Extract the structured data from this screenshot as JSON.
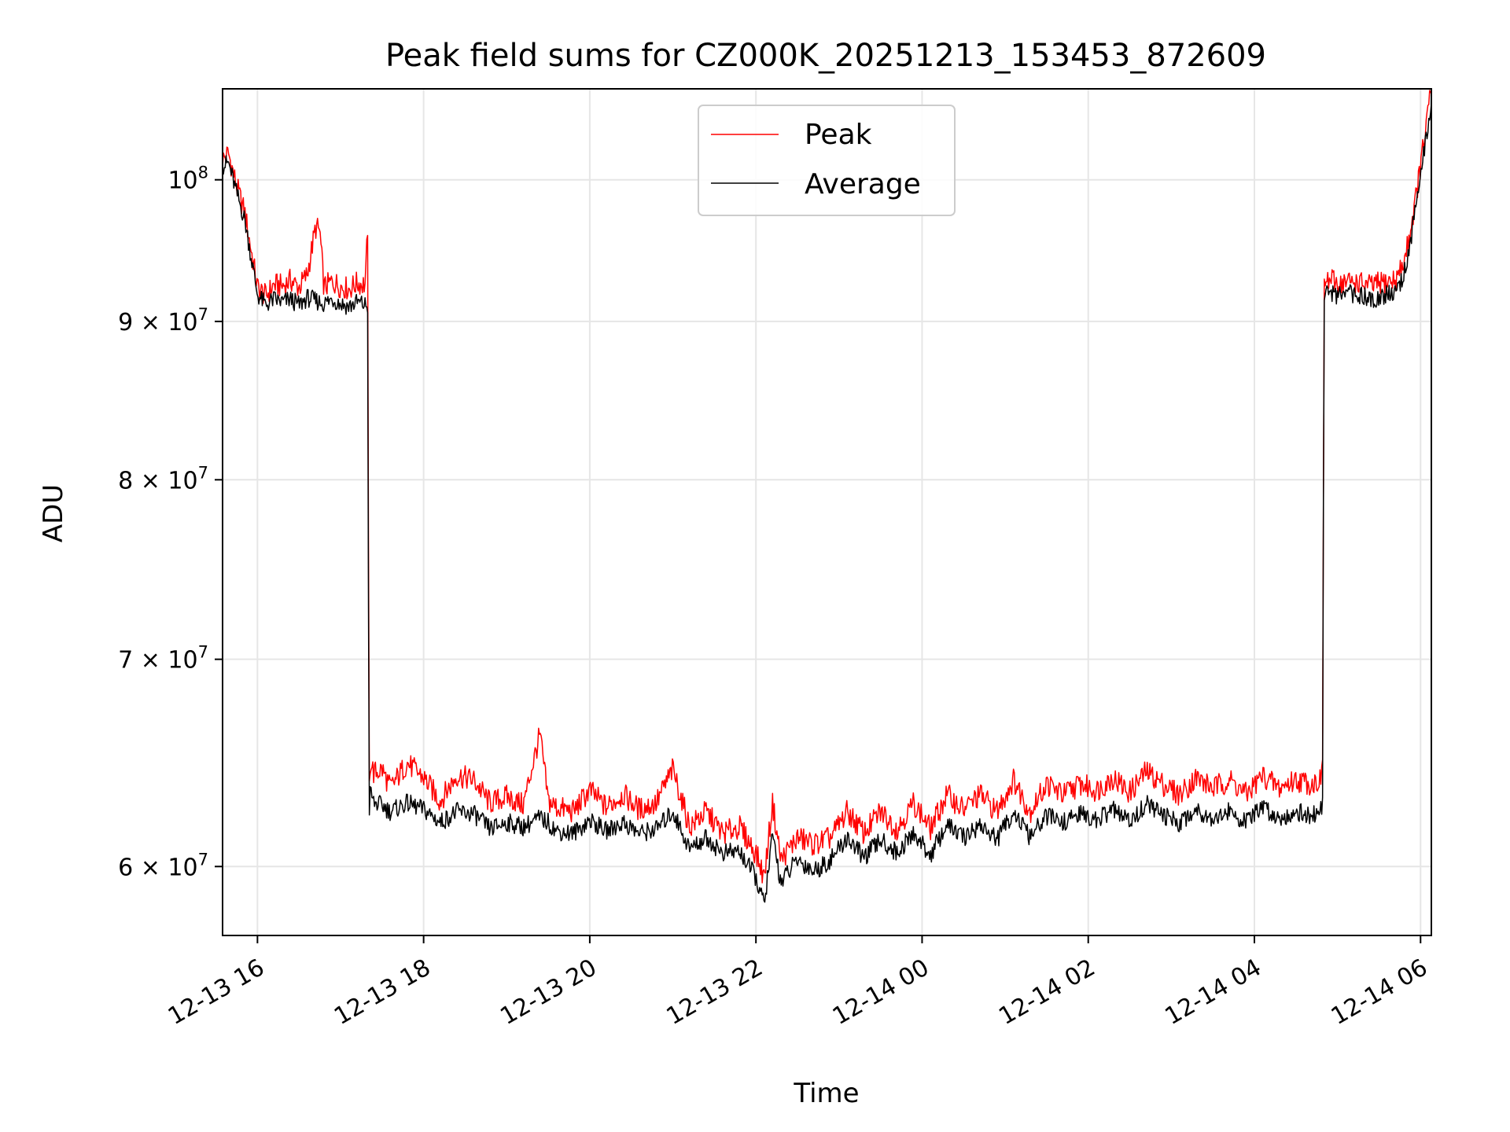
{
  "chart_data": {
    "type": "line",
    "title": "Peak field sums for CZ000K_20251213_153453_872609",
    "xlabel": "Time",
    "ylabel": "ADU",
    "yscale": "log",
    "grid": true,
    "legend_position": "top-center",
    "x_range_hours": [
      15.58,
      30.13
    ],
    "y_range": [
      57000000,
      107000000
    ],
    "x_ticks": [
      {
        "value": 16,
        "label": "12-13 16"
      },
      {
        "value": 18,
        "label": "12-13 18"
      },
      {
        "value": 20,
        "label": "12-13 20"
      },
      {
        "value": 22,
        "label": "12-13 22"
      },
      {
        "value": 24,
        "label": "12-14 00"
      },
      {
        "value": 26,
        "label": "12-14 02"
      },
      {
        "value": 28,
        "label": "12-14 04"
      },
      {
        "value": 30,
        "label": "12-14 06"
      }
    ],
    "y_ticks": [
      {
        "value": 60000000,
        "base": "6",
        "exp": "7"
      },
      {
        "value": 70000000,
        "base": "7",
        "exp": "7"
      },
      {
        "value": 80000000,
        "base": "8",
        "exp": "7"
      },
      {
        "value": 90000000,
        "base": "9",
        "exp": "7"
      },
      {
        "value": 100000000,
        "base": "",
        "exp": "8"
      }
    ],
    "y_tick_base_prefix": "× 10",
    "y_tick_ten": "10",
    "series": [
      {
        "name": "Peak",
        "color": "#ff0000",
        "x": [
          15.58,
          15.65,
          15.75,
          15.85,
          15.95,
          16.0,
          16.1,
          16.2,
          16.3,
          16.4,
          16.5,
          16.6,
          16.7,
          16.75,
          16.8,
          16.9,
          17.0,
          17.1,
          17.2,
          17.3,
          17.33,
          17.34,
          17.36,
          17.4,
          17.5,
          17.6,
          17.8,
          18.0,
          18.2,
          18.4,
          18.6,
          18.8,
          19.0,
          19.2,
          19.4,
          19.5,
          19.6,
          19.8,
          20.0,
          20.2,
          20.4,
          20.6,
          20.8,
          21.0,
          21.2,
          21.4,
          21.6,
          21.8,
          22.0,
          22.1,
          22.2,
          22.3,
          22.5,
          22.7,
          22.9,
          23.1,
          23.3,
          23.5,
          23.7,
          23.9,
          24.1,
          24.3,
          24.5,
          24.7,
          24.9,
          25.1,
          25.3,
          25.5,
          25.7,
          25.9,
          26.1,
          26.3,
          26.5,
          26.7,
          26.9,
          27.1,
          27.3,
          27.5,
          27.7,
          27.9,
          28.1,
          28.3,
          28.5,
          28.7,
          28.82,
          28.84,
          28.9,
          29.0,
          29.2,
          29.4,
          29.6,
          29.7,
          29.8,
          29.9,
          30.0,
          30.13
        ],
        "values": [
          101500000,
          102000000,
          99500000,
          97500000,
          94000000,
          92300000,
          91700000,
          92500000,
          92400000,
          92800000,
          92300000,
          93200000,
          96500000,
          96300000,
          92300000,
          92700000,
          92400000,
          92200000,
          92600000,
          92500000,
          97200000,
          63000000,
          65000000,
          64300000,
          64500000,
          63600000,
          64800000,
          64100000,
          63000000,
          64200000,
          64000000,
          62900000,
          63200000,
          62800000,
          66200000,
          63000000,
          62700000,
          62500000,
          63500000,
          62700000,
          63300000,
          62600000,
          62900000,
          64500000,
          61800000,
          62500000,
          61500000,
          61800000,
          60600000,
          59500000,
          62900000,
          60300000,
          61300000,
          61000000,
          61300000,
          62500000,
          61500000,
          62500000,
          61700000,
          62900000,
          61700000,
          63300000,
          62600000,
          63300000,
          62500000,
          64000000,
          62500000,
          63800000,
          63300000,
          63800000,
          63500000,
          64100000,
          63400000,
          64400000,
          63800000,
          63300000,
          64100000,
          63600000,
          64000000,
          63300000,
          64200000,
          63600000,
          64000000,
          63800000,
          64100000,
          92500000,
          92800000,
          92600000,
          92700000,
          92400000,
          92700000,
          92800000,
          94000000,
          97000000,
          101000000,
          107000000
        ]
      },
      {
        "name": "Average",
        "color": "#000000",
        "x": [
          15.58,
          15.65,
          15.75,
          15.85,
          15.95,
          16.0,
          16.1,
          16.2,
          16.3,
          16.4,
          16.5,
          16.6,
          16.7,
          16.75,
          16.8,
          16.9,
          17.0,
          17.1,
          17.2,
          17.3,
          17.33,
          17.34,
          17.36,
          17.4,
          17.5,
          17.6,
          17.8,
          18.0,
          18.2,
          18.4,
          18.6,
          18.8,
          19.0,
          19.2,
          19.4,
          19.5,
          19.6,
          19.8,
          20.0,
          20.2,
          20.4,
          20.6,
          20.8,
          21.0,
          21.2,
          21.4,
          21.6,
          21.8,
          22.0,
          22.1,
          22.2,
          22.3,
          22.5,
          22.7,
          22.9,
          23.1,
          23.3,
          23.5,
          23.7,
          23.9,
          24.1,
          24.3,
          24.5,
          24.7,
          24.9,
          25.1,
          25.3,
          25.5,
          25.7,
          25.9,
          26.1,
          26.3,
          26.5,
          26.7,
          26.9,
          27.1,
          27.3,
          27.5,
          27.7,
          27.9,
          28.1,
          28.3,
          28.5,
          28.7,
          28.82,
          28.84,
          28.9,
          29.0,
          29.2,
          29.4,
          29.6,
          29.7,
          29.8,
          29.9,
          30.0,
          30.13
        ],
        "values": [
          101000000,
          101300000,
          99000000,
          97000000,
          93500000,
          91800000,
          91100000,
          91500000,
          91300000,
          91500000,
          91100000,
          91600000,
          91400000,
          91300000,
          91200000,
          91500000,
          91200000,
          91000000,
          91300000,
          91100000,
          91000000,
          62200000,
          63500000,
          62900000,
          62800000,
          62500000,
          62900000,
          62600000,
          62000000,
          62500000,
          62400000,
          61700000,
          62000000,
          61800000,
          62200000,
          62000000,
          61600000,
          61500000,
          62100000,
          61600000,
          62000000,
          61500000,
          61700000,
          62500000,
          60800000,
          61300000,
          60600000,
          60700000,
          59500000,
          58300000,
          61400000,
          59300000,
          60300000,
          59800000,
          60300000,
          61300000,
          60400000,
          61200000,
          60600000,
          61500000,
          60500000,
          61900000,
          61300000,
          61900000,
          61200000,
          62500000,
          61300000,
          62300000,
          62000000,
          62400000,
          62100000,
          62600000,
          62000000,
          62900000,
          62300000,
          62000000,
          62600000,
          62200000,
          62500000,
          62000000,
          62700000,
          62200000,
          62500000,
          62300000,
          62700000,
          91800000,
          92000000,
          91700000,
          91900000,
          91500000,
          91800000,
          92000000,
          93200000,
          96200000,
          100200000,
          106000000
        ]
      }
    ]
  }
}
